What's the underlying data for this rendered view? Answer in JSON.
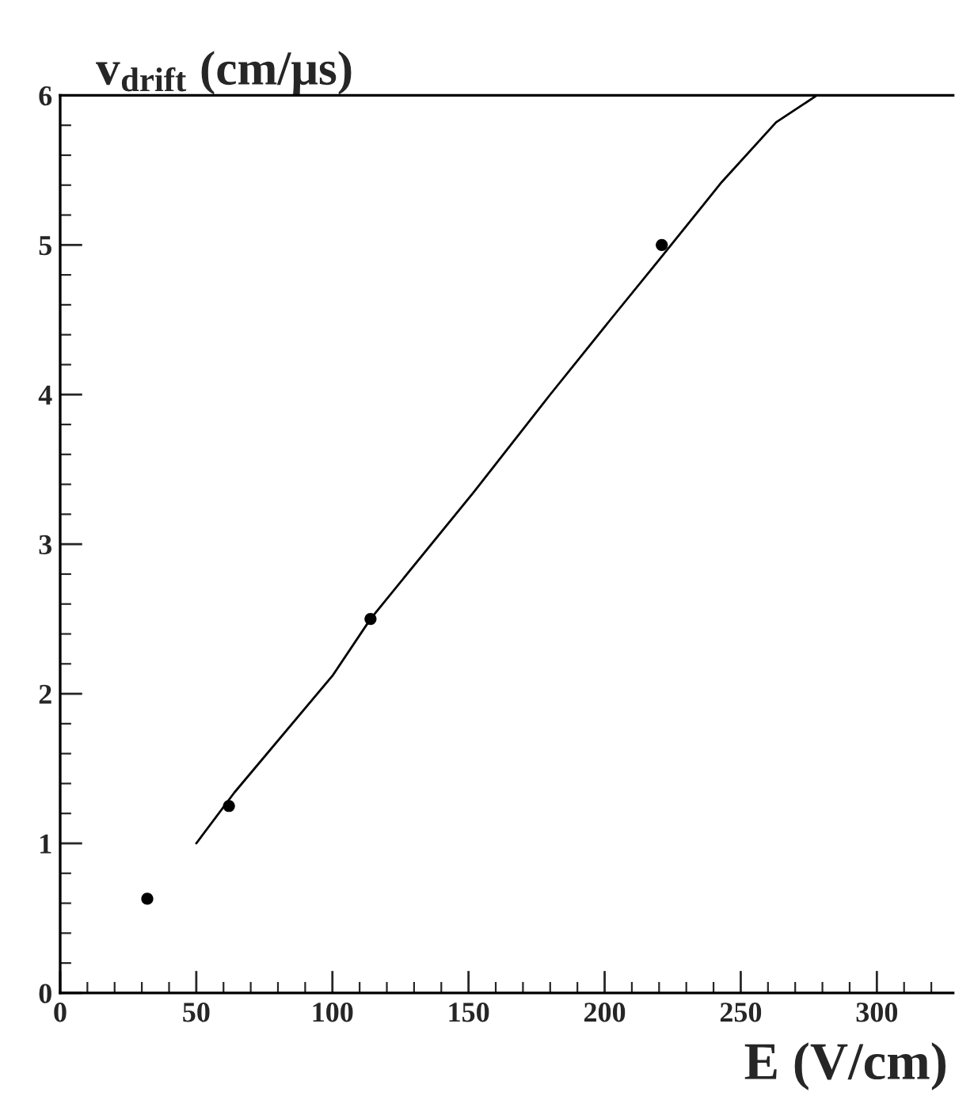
{
  "chart_data": {
    "type": "scatter",
    "xlabel": "E (V/cm)",
    "ylabel": "v$_{drift}$ (cm/μs)",
    "xlim": [
      0,
      328
    ],
    "xticks": [
      0,
      50,
      100,
      150,
      200,
      250,
      300
    ],
    "ylim": [
      0,
      6
    ],
    "yticks": [
      0,
      1,
      2,
      3,
      4,
      5,
      6
    ],
    "grid": false,
    "legend": false,
    "series": [
      {
        "color": "#000000",
        "marker": "circle",
        "x": [
          32,
          62,
          114,
          221
        ],
        "values": [
          0.63,
          1.25,
          2.5,
          5.0
        ]
      },
      {
        "type": "line",
        "color": "#000000",
        "marker": "none",
        "line_style": "solid",
        "x": [
          50,
          64,
          100,
          114,
          152,
          180,
          203,
          220,
          243,
          263,
          278
        ],
        "values": [
          1.0,
          1.34,
          2.12,
          2.5,
          3.35,
          4.0,
          4.52,
          4.9,
          5.42,
          5.82,
          6.0
        ]
      }
    ]
  }
}
